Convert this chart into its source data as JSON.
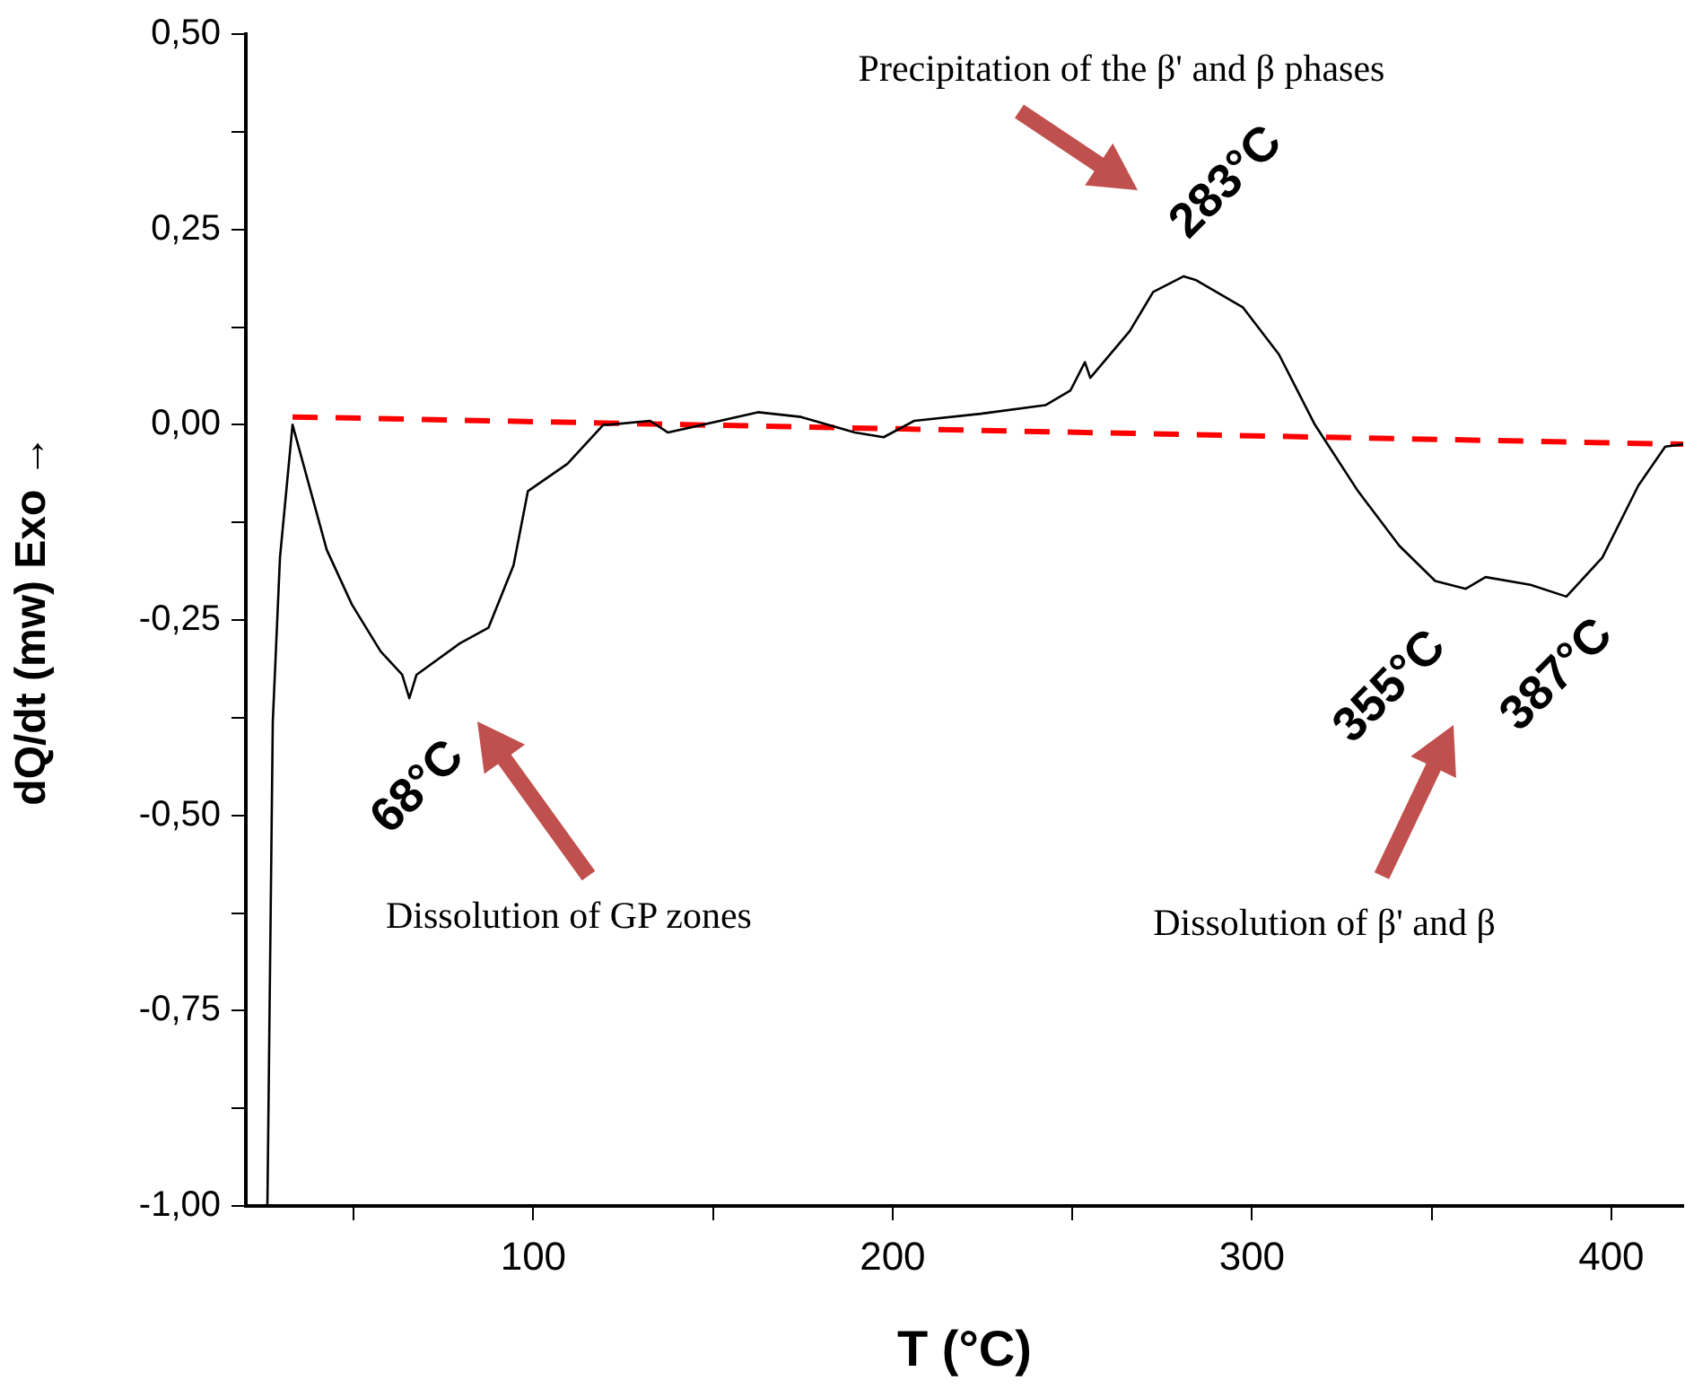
{
  "chart_data": {
    "type": "line",
    "xlabel": "T (°C)",
    "ylabel": "dQ/dt (mw) Exo →",
    "xlim": [
      20,
      420
    ],
    "ylim": [
      -1,
      0.5
    ],
    "xticks": [
      {
        "value": 50,
        "label": null
      },
      100,
      {
        "value": 150,
        "label": null
      },
      200,
      {
        "value": 250,
        "label": null
      },
      300,
      {
        "value": 350,
        "label": null
      },
      400
    ],
    "yticks": [
      {
        "value": -1,
        "label": "-1,00"
      },
      {
        "value": -0.875,
        "label": null
      },
      {
        "value": -0.75,
        "label": "-0,75"
      },
      {
        "value": -0.625,
        "label": null
      },
      {
        "value": -0.5,
        "label": "-0,50"
      },
      {
        "value": -0.375,
        "label": null
      },
      {
        "value": -0.25,
        "label": "-0,25"
      },
      {
        "value": -0.125,
        "label": null
      },
      {
        "value": 0,
        "label": "0,00"
      },
      {
        "value": 0.125,
        "label": null
      },
      {
        "value": 0.25,
        "label": "0,25"
      },
      {
        "value": 0.375,
        "label": null
      },
      {
        "value": 0.5,
        "label": "0,50"
      }
    ],
    "grid": false,
    "legend": false,
    "marker": "none",
    "series": [
      {
        "color": "#000000",
        "line_style": "solid",
        "x": [
          26,
          27.5,
          29.5,
          33,
          42.5,
          49.5,
          57.5,
          63.5,
          65.5,
          67.5,
          79.5,
          87.5,
          94.5,
          98.5,
          109.5,
          119.5,
          121,
          132.5,
          137.5,
          162.5,
          174.5,
          189.5,
          197.5,
          206,
          224.5,
          242.5,
          249.5,
          253.5,
          255,
          266,
          272.5,
          281,
          284.5,
          297.5,
          307.5,
          317.5,
          329.5,
          341,
          351,
          359.5,
          365,
          377.5,
          387.5,
          397.5,
          407.5,
          415,
          420
        ],
        "values": [
          -1,
          -0.38,
          -0.17,
          0,
          -0.16,
          -0.23,
          -0.29,
          -0.32,
          -0.35,
          -0.32,
          -0.28,
          -0.26,
          -0.18,
          -0.085,
          -0.05,
          0,
          0,
          0.005,
          -0.01,
          0.016,
          0.01,
          -0.01,
          -0.016,
          0.005,
          0.014,
          0.025,
          0.044,
          0.08,
          0.06,
          0.12,
          0.17,
          0.19,
          0.185,
          0.15,
          0.09,
          0,
          -0.085,
          -0.155,
          -0.2,
          -0.21,
          -0.195,
          -0.205,
          -0.22,
          -0.17,
          -0.078,
          -0.028,
          -0.025
        ]
      },
      {
        "type": "line",
        "color": "#ff0000",
        "line_style": "dashed",
        "x": [
          33,
          420
        ],
        "values": [
          0.01,
          -0.025
        ]
      }
    ],
    "annotations": [
      {
        "text": "283°C",
        "x": 283,
        "y": 0.19
      },
      {
        "text": "68°C",
        "x": 68,
        "y": -0.35
      },
      {
        "text": "355°C",
        "x": 355,
        "y": -0.21
      },
      {
        "text": "387°C",
        "x": 387,
        "y": -0.22
      },
      "Precipitation of the β' and β phases",
      "Dissolution of GP zones",
      "Dissolution of β' and β"
    ]
  }
}
